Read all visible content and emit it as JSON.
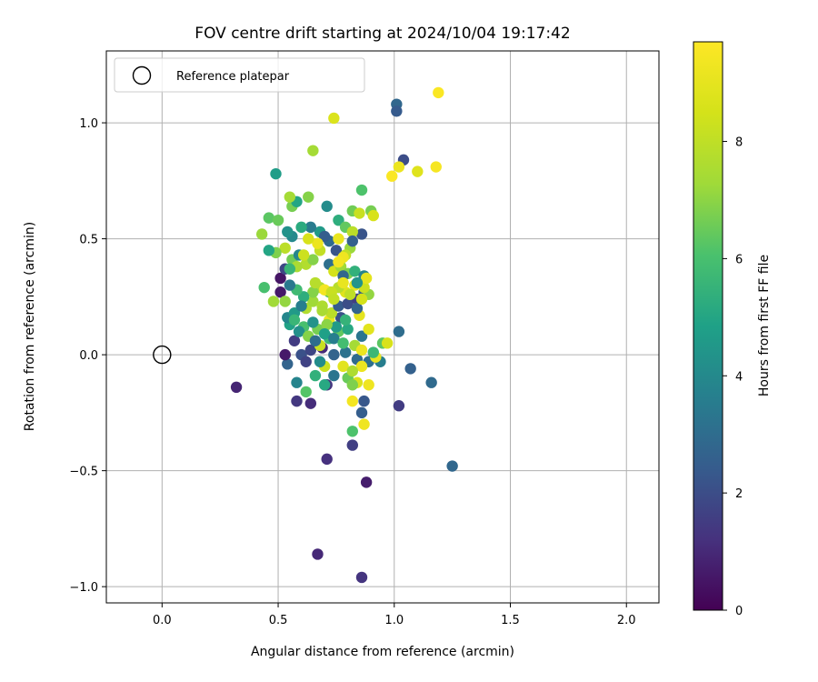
{
  "chart_data": {
    "type": "scatter",
    "title": "FOV centre drift starting at 2024/10/04 19:17:42",
    "xlabel": "Angular distance from reference (arcmin)",
    "ylabel": "Rotation from reference (arcmin)",
    "xlim": [
      -0.24,
      2.14
    ],
    "ylim": [
      -1.07,
      1.31
    ],
    "xticks": [
      0.0,
      0.5,
      1.0,
      1.5,
      2.0
    ],
    "xtick_labels": [
      "0.0",
      "0.5",
      "1.0",
      "1.5",
      "2.0"
    ],
    "yticks": [
      -1.0,
      -0.5,
      0.0,
      0.5,
      1.0
    ],
    "ytick_labels": [
      "−1.0",
      "−0.5",
      "0.0",
      "0.5",
      "1.0"
    ],
    "grid": true,
    "legend": {
      "label": "Reference platepar",
      "placement": "top-left"
    },
    "reference_point": {
      "x": 0.0,
      "y": 0.0
    },
    "colorbar": {
      "label": "Hours from first FF file",
      "min": 0,
      "max": 9.7,
      "ticks": [
        0,
        2,
        4,
        6,
        8
      ],
      "tick_labels": [
        "0",
        "2",
        "4",
        "6",
        "8"
      ],
      "colormap": "viridis"
    },
    "points": [
      [
        0.32,
        -0.14,
        0.9
      ],
      [
        1.25,
        -0.48,
        2.8
      ],
      [
        0.71,
        -0.45,
        1.2
      ],
      [
        0.88,
        -0.55,
        0.7
      ],
      [
        0.67,
        -0.86,
        1.0
      ],
      [
        0.86,
        -0.96,
        1.3
      ],
      [
        0.82,
        -0.39,
        1.6
      ],
      [
        1.02,
        -0.22,
        1.5
      ],
      [
        1.16,
        -0.12,
        2.9
      ],
      [
        1.07,
        -0.06,
        2.6
      ],
      [
        1.02,
        0.1,
        3.0
      ],
      [
        1.01,
        1.08,
        2.8
      ],
      [
        1.01,
        1.05,
        2.4
      ],
      [
        1.04,
        0.84,
        2.0
      ],
      [
        0.86,
        0.52,
        2.2
      ],
      [
        0.58,
        -0.2,
        1.4
      ],
      [
        0.64,
        -0.21,
        1.1
      ],
      [
        0.71,
        -0.13,
        1.3
      ],
      [
        0.87,
        -0.2,
        2.3
      ],
      [
        0.86,
        -0.25,
        2.5
      ],
      [
        0.54,
        -0.04,
        2.7
      ],
      [
        0.58,
        -0.12,
        3.8
      ],
      [
        0.62,
        -0.16,
        6.2
      ],
      [
        0.66,
        -0.09,
        5.4
      ],
      [
        0.7,
        -0.13,
        5.1
      ],
      [
        0.53,
        0.0,
        0.6
      ],
      [
        0.57,
        0.06,
        1.5
      ],
      [
        0.6,
        0.0,
        2.1
      ],
      [
        0.64,
        0.02,
        1.8
      ],
      [
        0.69,
        0.03,
        1.0
      ],
      [
        0.74,
        0.0,
        2.7
      ],
      [
        0.79,
        0.01,
        3.2
      ],
      [
        0.84,
        -0.02,
        2.9
      ],
      [
        0.89,
        -0.03,
        3.1
      ],
      [
        0.94,
        -0.03,
        3.6
      ],
      [
        0.95,
        0.05,
        6.3
      ],
      [
        0.97,
        0.05,
        8.6
      ],
      [
        0.92,
        -0.01,
        9.1
      ],
      [
        0.86,
        -0.05,
        9.2
      ],
      [
        0.84,
        -0.12,
        8.7
      ],
      [
        0.89,
        -0.13,
        9.3
      ],
      [
        0.82,
        -0.2,
        9.4
      ],
      [
        0.87,
        -0.3,
        9.3
      ],
      [
        0.82,
        -0.33,
        6.1
      ],
      [
        0.8,
        -0.1,
        6.5
      ],
      [
        0.82,
        -0.13,
        6.8
      ],
      [
        0.7,
        -0.05,
        8.3
      ],
      [
        0.68,
        0.04,
        8.2
      ],
      [
        0.72,
        0.07,
        5.7
      ],
      [
        0.76,
        0.1,
        6.4
      ],
      [
        0.8,
        0.11,
        5.1
      ],
      [
        0.86,
        0.08,
        3.3
      ],
      [
        0.89,
        0.11,
        8.9
      ],
      [
        0.85,
        0.17,
        9.0
      ],
      [
        0.77,
        0.16,
        2.1
      ],
      [
        0.72,
        0.15,
        9.2
      ],
      [
        0.67,
        0.11,
        6.7
      ],
      [
        0.61,
        0.12,
        6.0
      ],
      [
        0.55,
        0.13,
        4.9
      ],
      [
        0.54,
        0.16,
        3.9
      ],
      [
        0.57,
        0.18,
        4.6
      ],
      [
        0.59,
        0.1,
        4.2
      ],
      [
        0.62,
        0.2,
        7.7
      ],
      [
        0.65,
        0.23,
        7.3
      ],
      [
        0.69,
        0.21,
        7.6
      ],
      [
        0.73,
        0.18,
        7.9
      ],
      [
        0.76,
        0.21,
        2.4
      ],
      [
        0.8,
        0.22,
        2.0
      ],
      [
        0.84,
        0.24,
        1.6
      ],
      [
        0.87,
        0.27,
        2.6
      ],
      [
        0.89,
        0.26,
        7.1
      ],
      [
        0.87,
        0.29,
        8.3
      ],
      [
        0.83,
        0.3,
        9.0
      ],
      [
        0.79,
        0.27,
        8.8
      ],
      [
        0.76,
        0.29,
        7.8
      ],
      [
        0.72,
        0.27,
        6.4
      ],
      [
        0.68,
        0.29,
        7.6
      ],
      [
        0.65,
        0.27,
        6.9
      ],
      [
        0.61,
        0.25,
        5.3
      ],
      [
        0.58,
        0.28,
        5.8
      ],
      [
        0.55,
        0.3,
        3.4
      ],
      [
        0.51,
        0.27,
        0.6
      ],
      [
        0.44,
        0.29,
        6.0
      ],
      [
        0.48,
        0.23,
        7.3
      ],
      [
        0.53,
        0.23,
        7.1
      ],
      [
        0.51,
        0.33,
        0.5
      ],
      [
        0.53,
        0.37,
        1.8
      ],
      [
        0.56,
        0.41,
        6.6
      ],
      [
        0.59,
        0.43,
        3.9
      ],
      [
        0.62,
        0.39,
        7.7
      ],
      [
        0.65,
        0.41,
        6.9
      ],
      [
        0.68,
        0.45,
        8.1
      ],
      [
        0.72,
        0.39,
        3.1
      ],
      [
        0.74,
        0.36,
        8.5
      ],
      [
        0.77,
        0.38,
        7.3
      ],
      [
        0.8,
        0.35,
        6.8
      ],
      [
        0.83,
        0.36,
        5.4
      ],
      [
        0.87,
        0.34,
        3.8
      ],
      [
        0.88,
        0.33,
        9.0
      ],
      [
        0.84,
        0.31,
        4.4
      ],
      [
        0.78,
        0.34,
        2.8
      ],
      [
        0.75,
        0.45,
        2.2
      ],
      [
        0.72,
        0.49,
        2.9
      ],
      [
        0.68,
        0.53,
        4.6
      ],
      [
        0.64,
        0.55,
        3.5
      ],
      [
        0.6,
        0.55,
        5.2
      ],
      [
        0.56,
        0.51,
        4.0
      ],
      [
        0.53,
        0.46,
        7.9
      ],
      [
        0.49,
        0.44,
        6.8
      ],
      [
        0.46,
        0.45,
        5.0
      ],
      [
        0.43,
        0.52,
        7.2
      ],
      [
        0.46,
        0.59,
        6.3
      ],
      [
        0.5,
        0.58,
        6.5
      ],
      [
        0.54,
        0.53,
        4.3
      ],
      [
        0.56,
        0.64,
        6.7
      ],
      [
        0.58,
        0.66,
        5.0
      ],
      [
        0.55,
        0.68,
        7.4
      ],
      [
        0.63,
        0.68,
        6.9
      ],
      [
        0.49,
        0.78,
        4.7
      ],
      [
        0.65,
        0.88,
        7.4
      ],
      [
        0.74,
        1.02,
        8.7
      ],
      [
        0.71,
        0.64,
        4.1
      ],
      [
        0.76,
        0.58,
        5.3
      ],
      [
        0.79,
        0.55,
        6.4
      ],
      [
        0.82,
        0.53,
        7.9
      ],
      [
        0.82,
        0.62,
        6.6
      ],
      [
        0.85,
        0.61,
        8.2
      ],
      [
        0.9,
        0.62,
        6.7
      ],
      [
        0.91,
        0.6,
        8.6
      ],
      [
        0.86,
        0.71,
        6.1
      ],
      [
        0.81,
        0.46,
        7.2
      ],
      [
        0.82,
        0.49,
        2.6
      ],
      [
        0.79,
        0.43,
        8.0
      ],
      [
        0.76,
        0.5,
        9.1
      ],
      [
        0.7,
        0.51,
        2.5
      ],
      [
        0.67,
        0.48,
        9.2
      ],
      [
        0.63,
        0.5,
        8.6
      ],
      [
        0.61,
        0.43,
        8.3
      ],
      [
        0.58,
        0.38,
        7.5
      ],
      [
        0.55,
        0.37,
        5.6
      ],
      [
        0.66,
        0.31,
        7.8
      ],
      [
        0.7,
        0.28,
        9.4
      ],
      [
        0.73,
        0.27,
        8.2
      ],
      [
        0.78,
        0.31,
        9.1
      ],
      [
        0.81,
        0.26,
        8.0
      ],
      [
        0.84,
        0.2,
        2.7
      ],
      [
        0.79,
        0.15,
        5.5
      ],
      [
        0.75,
        0.12,
        4.6
      ],
      [
        0.71,
        0.13,
        7.0
      ],
      [
        0.65,
        0.14,
        4.3
      ],
      [
        0.63,
        0.08,
        6.9
      ],
      [
        0.66,
        0.06,
        3.0
      ],
      [
        0.7,
        0.09,
        4.8
      ],
      [
        0.74,
        0.07,
        3.6
      ],
      [
        0.78,
        0.05,
        5.9
      ],
      [
        0.83,
        0.04,
        7.4
      ],
      [
        0.86,
        0.02,
        9.2
      ],
      [
        0.91,
        0.01,
        5.7
      ],
      [
        0.78,
        0.42,
        9.3
      ],
      [
        0.76,
        0.4,
        9.4
      ],
      [
        0.99,
        0.77,
        9.6
      ],
      [
        1.02,
        0.81,
        9.2
      ],
      [
        1.1,
        0.79,
        8.8
      ],
      [
        1.18,
        0.81,
        9.5
      ],
      [
        1.19,
        1.13,
        9.6
      ],
      [
        0.6,
        0.21,
        3.6
      ],
      [
        0.57,
        0.15,
        5.6
      ],
      [
        0.69,
        0.19,
        7.5
      ],
      [
        0.74,
        0.24,
        8.1
      ],
      [
        0.86,
        0.24,
        8.5
      ],
      [
        0.62,
        -0.03,
        1.7
      ],
      [
        0.68,
        -0.03,
        4.1
      ],
      [
        0.74,
        -0.09,
        3.3
      ],
      [
        0.78,
        -0.05,
        8.9
      ],
      [
        0.82,
        -0.07,
        7.6
      ]
    ]
  }
}
